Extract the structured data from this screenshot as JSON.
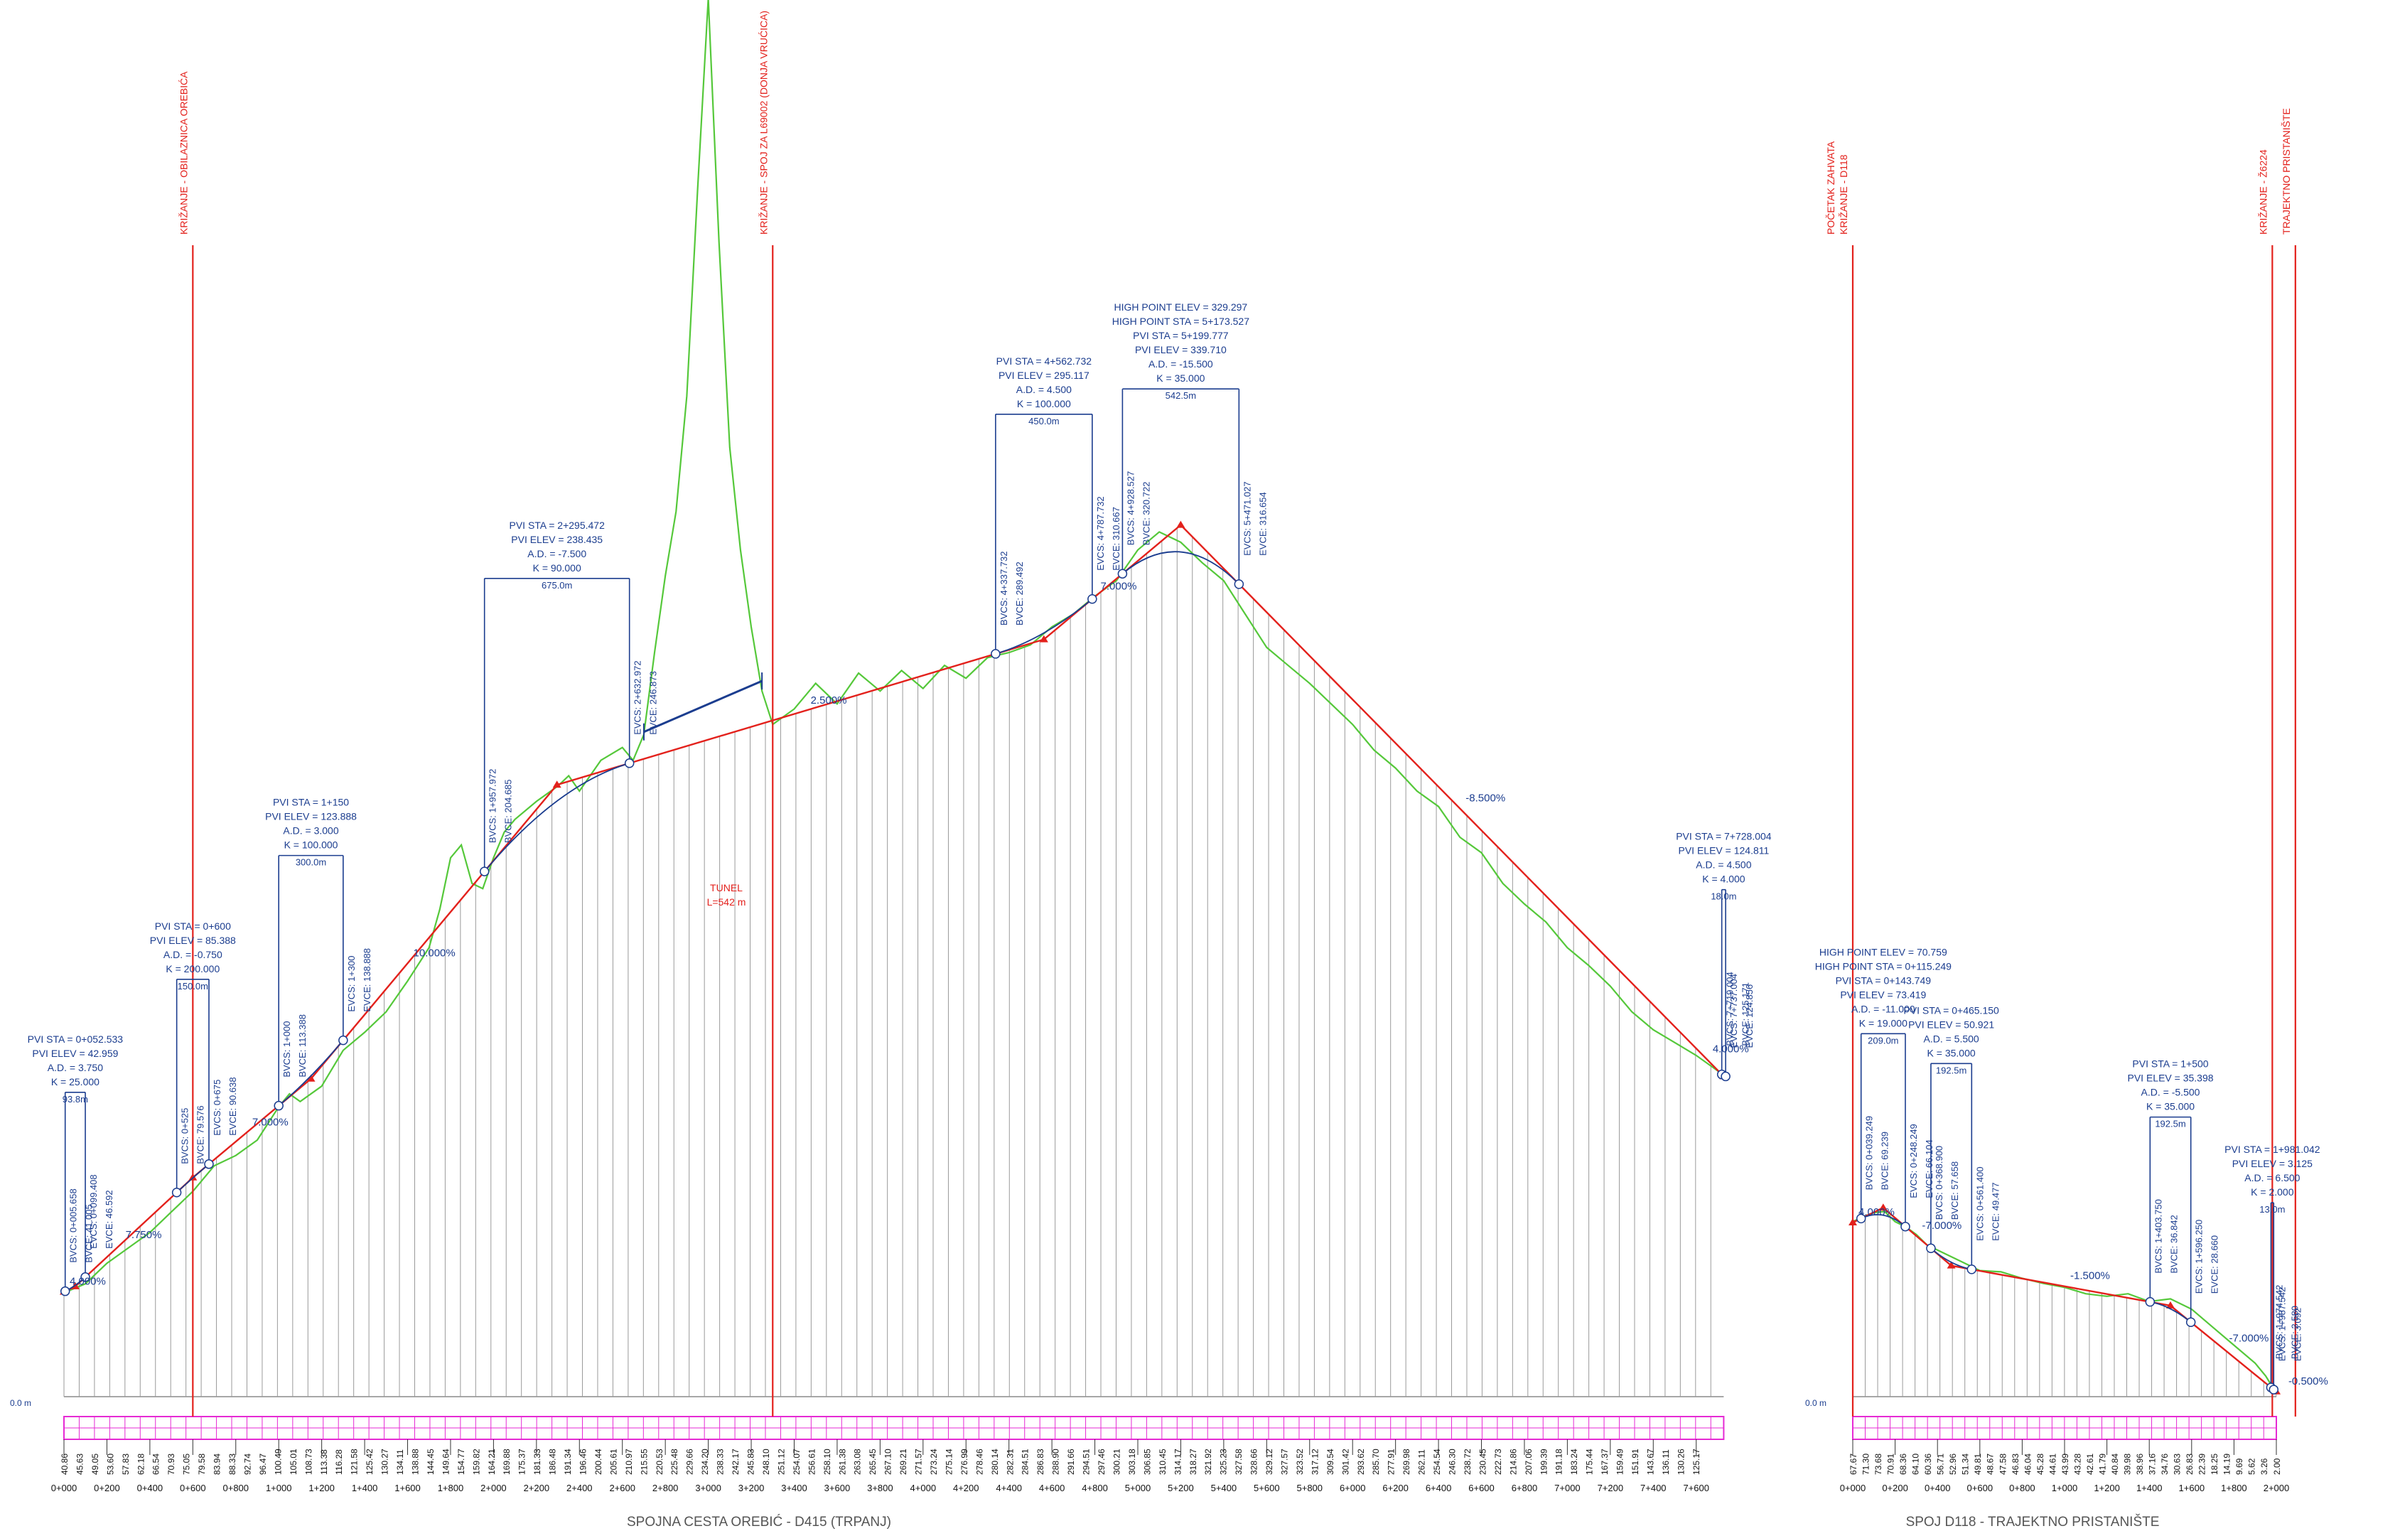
{
  "colors": {
    "terrain": "#55c83a",
    "grade_line": "#e3211c",
    "vertical_curve": "#1b3d8f",
    "station_band": "#e62ad4",
    "crossing_line": "#e3211c",
    "hatch": "#9a9a9a"
  },
  "datum_label": "0.0 m",
  "profiles": [
    {
      "id": "main",
      "title": "SPOJNA CESTA OREBIĆ - D415 (TRPANJ)",
      "stations": [
        "0+000",
        "0+200",
        "0+400",
        "0+600",
        "0+800",
        "1+000",
        "1+200",
        "1+400",
        "1+600",
        "1+800",
        "2+000",
        "2+200",
        "2+400",
        "2+600",
        "2+800",
        "3+000",
        "3+200",
        "3+400",
        "3+600",
        "3+800",
        "4+000",
        "4+200",
        "4+400",
        "4+600",
        "4+800",
        "5+000",
        "5+200",
        "5+400",
        "5+600",
        "5+800",
        "6+000",
        "6+200",
        "6+400",
        "6+600",
        "6+800",
        "7+000",
        "7+200",
        "7+400",
        "7+600"
      ],
      "crossings": [
        {
          "label": "KRIŽANJE - OBILAZNICA OREBIĆA",
          "station": 0.6
        },
        {
          "label": "KRIŽANJE - SPOJ ZA L69002 (DONJA VRUĆICA)",
          "station": 3.3
        }
      ],
      "grades": [
        {
          "label": "4.000%",
          "station": 0.0
        },
        {
          "label": "7.750%",
          "station": 0.26
        },
        {
          "label": "7.000%",
          "station": 0.85
        },
        {
          "label": "10.000%",
          "station": 1.6
        },
        {
          "label": "2.500%",
          "station": 3.45
        },
        {
          "label": "7.000%",
          "station": 4.8
        },
        {
          "label": "-8.500%",
          "station": 6.5
        },
        {
          "label": "4.000%",
          "station": 7.65
        }
      ],
      "tunnel": {
        "name": "TUNEL",
        "length": "L=542 m",
        "start_station": 2.7,
        "end_station": 3.25
      },
      "pvis": [
        {
          "text": [
            "PVI STA = 0+052.533",
            "PVI ELEV = 42.959",
            "A.D. = 3.750",
            "K = 25.000"
          ],
          "station": 0.052533,
          "length_label": "93.8m",
          "bvc_station": 0.005658,
          "evc_station": 0.099408,
          "vertical_labels": [
            "BVCS: 0+005.658",
            "BVCE: 41.005",
            "EVCS: 0+099.408",
            "EVCE: 46.592"
          ]
        },
        {
          "text": [
            "PVI STA = 0+600",
            "PVI ELEV = 85.388",
            "A.D. = -0.750",
            "K = 200.000"
          ],
          "station": 0.6,
          "length_label": "150.0m",
          "bvc_station": 0.525,
          "evc_station": 0.675,
          "vertical_labels": [
            "BVCS: 0+525",
            "BVCE: 79.576",
            "EVCS: 0+675",
            "EVCE: 90.638"
          ]
        },
        {
          "text": [
            "PVI STA = 1+150",
            "PVI ELEV = 123.888",
            "A.D. = 3.000",
            "K = 100.000"
          ],
          "station": 1.15,
          "length_label": "300.0m",
          "bvc_station": 1.0,
          "evc_station": 1.3,
          "vertical_labels": [
            "BVCS: 1+000",
            "BVCE: 113.388",
            "EVCS: 1+300",
            "EVCE: 138.888"
          ]
        },
        {
          "text": [
            "PVI STA = 2+295.472",
            "PVI ELEV = 238.435",
            "A.D. = -7.500",
            "K = 90.000"
          ],
          "station": 2.295472,
          "length_label": "675.0m",
          "bvc_station": 1.957972,
          "evc_station": 2.632972,
          "vertical_labels": [
            "BVCS: 1+957.972",
            "BVCE: 204.685",
            "EVCS: 2+632.972",
            "EVCE: 246.873"
          ]
        },
        {
          "text": [
            "PVI STA = 4+562.732",
            "PVI ELEV = 295.117",
            "A.D. = 4.500",
            "K = 100.000"
          ],
          "station": 4.562732,
          "length_label": "450.0m",
          "bvc_station": 4.337732,
          "evc_station": 4.787732,
          "vertical_labels": [
            "BVCS: 4+337.732",
            "BVCE: 289.492",
            "EVCS: 4+787.732",
            "EVCE: 310.667"
          ]
        },
        {
          "text": [
            "HIGH POINT ELEV = 329.297",
            "HIGH POINT STA = 5+173.527",
            "PVI STA = 5+199.777",
            "PVI ELEV = 339.710",
            "A.D. = -15.500",
            "K = 35.000"
          ],
          "station": 5.199777,
          "length_label": "542.5m",
          "bvc_station": 4.928527,
          "evc_station": 5.471027,
          "vertical_labels": [
            "BVCS: 4+928.527",
            "BVCE: 320.722",
            "EVCS: 5+471.027",
            "EVCE: 316.654"
          ]
        },
        {
          "text": [
            "PVI STA = 7+728.004",
            "PVI ELEV = 124.811",
            "A.D. = 4.500",
            "K = 4.000"
          ],
          "station": 7.728004,
          "length_label": "18.0m",
          "bvc_station": 7.719004,
          "evc_station": 7.737004,
          "vertical_labels": [
            "BVCS: 7+719.004",
            "BVCE: 125.171",
            "EVCS: 7+737.004",
            "EVCE: 124.856"
          ]
        }
      ],
      "elevations": [
        "40.86",
        "45.63",
        "49.05",
        "53.60",
        "57.83",
        "62.18",
        "66.54",
        "70.93",
        "75.05",
        "79.58",
        "83.94",
        "88.33",
        "92.74",
        "96.47",
        "100.49",
        "105.01",
        "108.73",
        "113.38",
        "116.28",
        "121.58",
        "125.42",
        "130.27",
        "134.11",
        "138.88",
        "144.45",
        "149.64",
        "154.77",
        "159.82",
        "164.21",
        "169.88",
        "175.37",
        "181.33",
        "186.48",
        "191.34",
        "196.46",
        "200.44",
        "205.61",
        "210.97",
        "215.55",
        "220.53",
        "225.48",
        "229.66",
        "234.20",
        "238.33",
        "242.17",
        "245.83",
        "248.10",
        "251.12",
        "254.07",
        "256.61",
        "258.10",
        "261.38",
        "263.08",
        "265.45",
        "267.10",
        "269.21",
        "271.57",
        "273.24",
        "275.14",
        "276.99",
        "278.46",
        "280.14",
        "282.31",
        "284.51",
        "286.83",
        "288.90",
        "291.66",
        "294.51",
        "297.46",
        "300.21",
        "303.18",
        "306.85",
        "310.45",
        "314.17",
        "318.27",
        "321.92",
        "325.23",
        "327.58",
        "328.66",
        "329.12",
        "327.57",
        "323.52",
        "317.12",
        "309.54",
        "301.42",
        "293.62",
        "285.70",
        "277.91",
        "269.98",
        "262.11",
        "254.54",
        "246.30",
        "238.72",
        "230.45",
        "222.73",
        "214.86",
        "207.06",
        "199.39",
        "191.18",
        "183.24",
        "175.44",
        "167.37",
        "159.49",
        "151.91",
        "143.67",
        "136.11",
        "130.26",
        "125.17"
      ]
    },
    {
      "id": "second",
      "title": "SPOJ D118 - TRAJEKTNO PRISTANIŠTE",
      "stations": [
        "0+000",
        "0+200",
        "0+400",
        "0+600",
        "0+800",
        "1+000",
        "1+200",
        "1+400",
        "1+600",
        "1+800",
        "2+000"
      ],
      "crossings": [
        {
          "label": "POČETAK ZAHVATA\nKRIŽANJE - D118",
          "station": 0.0
        },
        {
          "label": "KRIŽANJE - Ž6224",
          "station": 1.981
        },
        {
          "label": "TRAJEKTNO PRISTANIŠTE",
          "station": 2.09
        }
      ],
      "grades": [
        {
          "label": "4.000%",
          "station": 0.0
        },
        {
          "label": "-7.000%",
          "station": 0.3
        },
        {
          "label": "-1.500%",
          "station": 1.0
        },
        {
          "label": "-7.000%",
          "station": 1.75
        },
        {
          "label": "-0.500%",
          "station": 2.03
        }
      ],
      "pvis": [
        {
          "text": [
            "HIGH POINT ELEV = 70.759",
            "HIGH POINT STA = 0+115.249",
            "PVI STA = 0+143.749",
            "PVI ELEV = 73.419",
            "A.D. = -11.000",
            "K = 19.000"
          ],
          "station": 0.143749,
          "length_label": "209.0m",
          "bvc_station": 0.039249,
          "evc_station": 0.248249,
          "vertical_labels": [
            "BVCS: 0+039.249",
            "BVCE: 69.239",
            "EVCS: 0+248.249",
            "EVCE: 66.104"
          ]
        },
        {
          "text": [
            "PVI STA = 0+465.150",
            "PVI ELEV = 50.921",
            "A.D. = 5.500",
            "K = 35.000"
          ],
          "station": 0.46515,
          "length_label": "192.5m",
          "bvc_station": 0.3689,
          "evc_station": 0.5614,
          "vertical_labels": [
            "BVCS: 0+368.900",
            "BVCE: 57.658",
            "EVCS: 0+561.400",
            "EVCE: 49.477"
          ]
        },
        {
          "text": [
            "PVI STA = 1+500",
            "PVI ELEV = 35.398",
            "A.D. = -5.500",
            "K = 35.000"
          ],
          "station": 1.5,
          "length_label": "192.5m",
          "bvc_station": 1.40375,
          "evc_station": 1.59625,
          "vertical_labels": [
            "BVCS: 1+403.750",
            "BVCE: 36.842",
            "EVCS: 1+596.250",
            "EVCE: 28.660"
          ]
        },
        {
          "text": [
            "PVI STA = 1+981.042",
            "PVI ELEV = 3.125",
            "A.D. = 6.500",
            "K = 2.000"
          ],
          "station": 1.981042,
          "length_label": "13.0m",
          "bvc_station": 1.974542,
          "evc_station": 1.987542,
          "vertical_labels": [
            "BVCS: 1+974.542",
            "BVCE: 3.580",
            "EVCS: 1+987.542",
            "EVCE: 3.092"
          ]
        }
      ],
      "elevations": [
        "67.67",
        "71.30",
        "73.68",
        "70.91",
        "68.36",
        "64.10",
        "60.36",
        "56.71",
        "52.96",
        "51.34",
        "49.81",
        "48.67",
        "47.58",
        "46.83",
        "46.04",
        "45.28",
        "44.61",
        "43.99",
        "43.28",
        "42.61",
        "41.79",
        "40.84",
        "39.98",
        "38.96",
        "37.16",
        "34.76",
        "30.63",
        "26.83",
        "22.39",
        "18.25",
        "14.19",
        "9.69",
        "5.62",
        "3.26",
        "2.00"
      ]
    }
  ]
}
